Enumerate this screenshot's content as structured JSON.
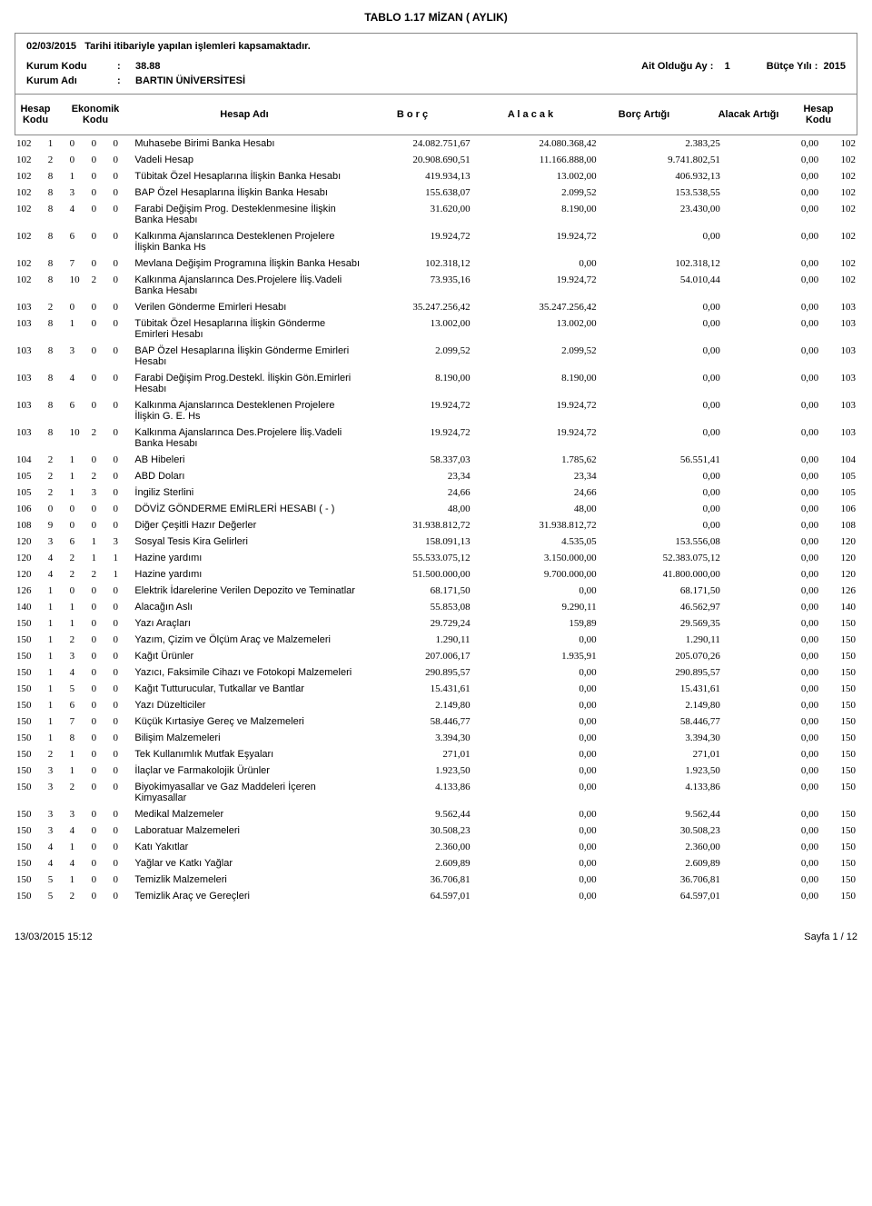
{
  "title": "TABLO 1.17   MİZAN ( AYLIK)",
  "subtitle_date": "02/03/2015",
  "subtitle_text": "Tarihi itibariyle yapılan işlemleri kapsamaktadır.",
  "meta": {
    "kurum_kodu_label": "Kurum Kodu",
    "kurum_kodu_value": "38.88",
    "kurum_adi_label": "Kurum Adı",
    "kurum_adi_value": "BARTIN ÜNİVERSİTESİ",
    "ait_ay_label": "Ait Olduğu Ay  :",
    "ait_ay_value": "1",
    "butce_label": "Bütçe Yılı  :",
    "butce_value": "2015"
  },
  "headers": {
    "hesap_kodu": "Hesap Kodu",
    "ekonomik_kodu": "Ekonomik Kodu",
    "hesap_adi": "Hesap Adı",
    "borc": "B  o  r  ç",
    "alacak": "A  l  a  c  a  k",
    "borc_artigi": "Borç Artığı",
    "alacak_artigi": "Alacak Artığı",
    "hesap_kodu2": "Hesap Kodu"
  },
  "rows": [
    {
      "h": "102",
      "e": [
        "1",
        "0",
        "0",
        "0"
      ],
      "adi": "Muhasebe Birimi Banka Hesabı",
      "b": "24.082.751,67",
      "a": "24.080.368,42",
      "ba": "2.383,25",
      "aa": "0,00",
      "h2": "102"
    },
    {
      "h": "102",
      "e": [
        "2",
        "0",
        "0",
        "0"
      ],
      "adi": "Vadeli Hesap",
      "b": "20.908.690,51",
      "a": "11.166.888,00",
      "ba": "9.741.802,51",
      "aa": "0,00",
      "h2": "102"
    },
    {
      "h": "102",
      "e": [
        "8",
        "1",
        "0",
        "0"
      ],
      "adi": "Tübitak Özel Hesaplarına İlişkin Banka Hesabı",
      "b": "419.934,13",
      "a": "13.002,00",
      "ba": "406.932,13",
      "aa": "0,00",
      "h2": "102"
    },
    {
      "h": "102",
      "e": [
        "8",
        "3",
        "0",
        "0"
      ],
      "adi": "BAP Özel Hesaplarına İlişkin Banka Hesabı",
      "b": "155.638,07",
      "a": "2.099,52",
      "ba": "153.538,55",
      "aa": "0,00",
      "h2": "102"
    },
    {
      "h": "102",
      "e": [
        "8",
        "4",
        "0",
        "0"
      ],
      "adi": "Farabi Değişim Prog. Desteklenmesine İlişkin Banka Hesabı",
      "b": "31.620,00",
      "a": "8.190,00",
      "ba": "23.430,00",
      "aa": "0,00",
      "h2": "102"
    },
    {
      "h": "102",
      "e": [
        "8",
        "6",
        "0",
        "0"
      ],
      "adi": "Kalkınma Ajanslarınca Desteklenen Projelere İlişkin Banka Hs",
      "b": "19.924,72",
      "a": "19.924,72",
      "ba": "0,00",
      "aa": "0,00",
      "h2": "102"
    },
    {
      "h": "102",
      "e": [
        "8",
        "7",
        "0",
        "0"
      ],
      "adi": "Mevlana Değişim Programına İlişkin Banka Hesabı",
      "b": "102.318,12",
      "a": "0,00",
      "ba": "102.318,12",
      "aa": "0,00",
      "h2": "102"
    },
    {
      "h": "102",
      "e": [
        "8",
        "10",
        "2",
        "0"
      ],
      "adi": "Kalkınma Ajanslarınca Des.Projelere İliş.Vadeli Banka Hesabı",
      "b": "73.935,16",
      "a": "19.924,72",
      "ba": "54.010,44",
      "aa": "0,00",
      "h2": "102"
    },
    {
      "h": "103",
      "e": [
        "2",
        "0",
        "0",
        "0"
      ],
      "adi": "Verilen Gönderme Emirleri Hesabı",
      "b": "35.247.256,42",
      "a": "35.247.256,42",
      "ba": "0,00",
      "aa": "0,00",
      "h2": "103"
    },
    {
      "h": "103",
      "e": [
        "8",
        "1",
        "0",
        "0"
      ],
      "adi": "Tübitak Özel Hesaplarına İlişkin Gönderme Emirleri Hesabı",
      "b": "13.002,00",
      "a": "13.002,00",
      "ba": "0,00",
      "aa": "0,00",
      "h2": "103"
    },
    {
      "h": "103",
      "e": [
        "8",
        "3",
        "0",
        "0"
      ],
      "adi": "BAP Özel Hesaplarına İlişkin Gönderme Emirleri Hesabı",
      "b": "2.099,52",
      "a": "2.099,52",
      "ba": "0,00",
      "aa": "0,00",
      "h2": "103"
    },
    {
      "h": "103",
      "e": [
        "8",
        "4",
        "0",
        "0"
      ],
      "adi": "Farabi Değişim Prog.Destekl. İlişkin Gön.Emirleri Hesabı",
      "b": "8.190,00",
      "a": "8.190,00",
      "ba": "0,00",
      "aa": "0,00",
      "h2": "103"
    },
    {
      "h": "103",
      "e": [
        "8",
        "6",
        "0",
        "0"
      ],
      "adi": "Kalkınma Ajanslarınca Desteklenen Projelere İlişkin G. E. Hs",
      "b": "19.924,72",
      "a": "19.924,72",
      "ba": "0,00",
      "aa": "0,00",
      "h2": "103"
    },
    {
      "h": "103",
      "e": [
        "8",
        "10",
        "2",
        "0"
      ],
      "adi": "Kalkınma Ajanslarınca Des.Projelere İliş.Vadeli Banka Hesabı",
      "b": "19.924,72",
      "a": "19.924,72",
      "ba": "0,00",
      "aa": "0,00",
      "h2": "103"
    },
    {
      "h": "104",
      "e": [
        "2",
        "1",
        "0",
        "0"
      ],
      "adi": "AB Hibeleri",
      "b": "58.337,03",
      "a": "1.785,62",
      "ba": "56.551,41",
      "aa": "0,00",
      "h2": "104"
    },
    {
      "h": "105",
      "e": [
        "2",
        "1",
        "2",
        "0"
      ],
      "adi": "ABD Doları",
      "b": "23,34",
      "a": "23,34",
      "ba": "0,00",
      "aa": "0,00",
      "h2": "105"
    },
    {
      "h": "105",
      "e": [
        "2",
        "1",
        "3",
        "0"
      ],
      "adi": "İngiliz Sterlini",
      "b": "24,66",
      "a": "24,66",
      "ba": "0,00",
      "aa": "0,00",
      "h2": "105"
    },
    {
      "h": "106",
      "e": [
        "0",
        "0",
        "0",
        "0"
      ],
      "adi": "DÖVİZ GÖNDERME EMİRLERİ HESABI  ( - )",
      "b": "48,00",
      "a": "48,00",
      "ba": "0,00",
      "aa": "0,00",
      "h2": "106"
    },
    {
      "h": "108",
      "e": [
        "9",
        "0",
        "0",
        "0"
      ],
      "adi": "Diğer Çeşitli Hazır Değerler",
      "b": "31.938.812,72",
      "a": "31.938.812,72",
      "ba": "0,00",
      "aa": "0,00",
      "h2": "108"
    },
    {
      "h": "120",
      "e": [
        "3",
        "6",
        "1",
        "3"
      ],
      "adi": "Sosyal Tesis Kira Gelirleri",
      "b": "158.091,13",
      "a": "4.535,05",
      "ba": "153.556,08",
      "aa": "0,00",
      "h2": "120"
    },
    {
      "h": "120",
      "e": [
        "4",
        "2",
        "1",
        "1"
      ],
      "adi": "Hazine yardımı",
      "b": "55.533.075,12",
      "a": "3.150.000,00",
      "ba": "52.383.075,12",
      "aa": "0,00",
      "h2": "120"
    },
    {
      "h": "120",
      "e": [
        "4",
        "2",
        "2",
        "1"
      ],
      "adi": "Hazine yardımı",
      "b": "51.500.000,00",
      "a": "9.700.000,00",
      "ba": "41.800.000,00",
      "aa": "0,00",
      "h2": "120"
    },
    {
      "h": "126",
      "e": [
        "1",
        "0",
        "0",
        "0"
      ],
      "adi": "Elektrik İdarelerine Verilen Depozito ve Teminatlar",
      "b": "68.171,50",
      "a": "0,00",
      "ba": "68.171,50",
      "aa": "0,00",
      "h2": "126"
    },
    {
      "h": "140",
      "e": [
        "1",
        "1",
        "0",
        "0"
      ],
      "adi": "Alacağın Aslı",
      "b": "55.853,08",
      "a": "9.290,11",
      "ba": "46.562,97",
      "aa": "0,00",
      "h2": "140"
    },
    {
      "h": "150",
      "e": [
        "1",
        "1",
        "0",
        "0"
      ],
      "adi": "Yazı Araçları",
      "b": "29.729,24",
      "a": "159,89",
      "ba": "29.569,35",
      "aa": "0,00",
      "h2": "150"
    },
    {
      "h": "150",
      "e": [
        "1",
        "2",
        "0",
        "0"
      ],
      "adi": "Yazım, Çizim ve Ölçüm Araç ve Malzemeleri",
      "b": "1.290,11",
      "a": "0,00",
      "ba": "1.290,11",
      "aa": "0,00",
      "h2": "150"
    },
    {
      "h": "150",
      "e": [
        "1",
        "3",
        "0",
        "0"
      ],
      "adi": "Kağıt Ürünler",
      "b": "207.006,17",
      "a": "1.935,91",
      "ba": "205.070,26",
      "aa": "0,00",
      "h2": "150"
    },
    {
      "h": "150",
      "e": [
        "1",
        "4",
        "0",
        "0"
      ],
      "adi": "Yazıcı, Faksimile Cihazı ve Fotokopi Malzemeleri",
      "b": "290.895,57",
      "a": "0,00",
      "ba": "290.895,57",
      "aa": "0,00",
      "h2": "150"
    },
    {
      "h": "150",
      "e": [
        "1",
        "5",
        "0",
        "0"
      ],
      "adi": "Kağıt Tutturucular, Tutkallar ve Bantlar",
      "b": "15.431,61",
      "a": "0,00",
      "ba": "15.431,61",
      "aa": "0,00",
      "h2": "150"
    },
    {
      "h": "150",
      "e": [
        "1",
        "6",
        "0",
        "0"
      ],
      "adi": "Yazı Düzelticiler",
      "b": "2.149,80",
      "a": "0,00",
      "ba": "2.149,80",
      "aa": "0,00",
      "h2": "150"
    },
    {
      "h": "150",
      "e": [
        "1",
        "7",
        "0",
        "0"
      ],
      "adi": "Küçük Kırtasiye Gereç ve Malzemeleri",
      "b": "58.446,77",
      "a": "0,00",
      "ba": "58.446,77",
      "aa": "0,00",
      "h2": "150"
    },
    {
      "h": "150",
      "e": [
        "1",
        "8",
        "0",
        "0"
      ],
      "adi": "Bilişim Malzemeleri",
      "b": "3.394,30",
      "a": "0,00",
      "ba": "3.394,30",
      "aa": "0,00",
      "h2": "150"
    },
    {
      "h": "150",
      "e": [
        "2",
        "1",
        "0",
        "0"
      ],
      "adi": "Tek Kullanımlık Mutfak Eşyaları",
      "b": "271,01",
      "a": "0,00",
      "ba": "271,01",
      "aa": "0,00",
      "h2": "150"
    },
    {
      "h": "150",
      "e": [
        "3",
        "1",
        "0",
        "0"
      ],
      "adi": "İlaçlar ve Farmakolojik Ürünler",
      "b": "1.923,50",
      "a": "0,00",
      "ba": "1.923,50",
      "aa": "0,00",
      "h2": "150"
    },
    {
      "h": "150",
      "e": [
        "3",
        "2",
        "0",
        "0"
      ],
      "adi": "Biyokimyasallar ve Gaz Maddeleri İçeren Kimyasallar",
      "b": "4.133,86",
      "a": "0,00",
      "ba": "4.133,86",
      "aa": "0,00",
      "h2": "150"
    },
    {
      "h": "150",
      "e": [
        "3",
        "3",
        "0",
        "0"
      ],
      "adi": "Medikal Malzemeler",
      "b": "9.562,44",
      "a": "0,00",
      "ba": "9.562,44",
      "aa": "0,00",
      "h2": "150"
    },
    {
      "h": "150",
      "e": [
        "3",
        "4",
        "0",
        "0"
      ],
      "adi": "Laboratuar Malzemeleri",
      "b": "30.508,23",
      "a": "0,00",
      "ba": "30.508,23",
      "aa": "0,00",
      "h2": "150"
    },
    {
      "h": "150",
      "e": [
        "4",
        "1",
        "0",
        "0"
      ],
      "adi": "Katı Yakıtlar",
      "b": "2.360,00",
      "a": "0,00",
      "ba": "2.360,00",
      "aa": "0,00",
      "h2": "150"
    },
    {
      "h": "150",
      "e": [
        "4",
        "4",
        "0",
        "0"
      ],
      "adi": "Yağlar ve Katkı Yağlar",
      "b": "2.609,89",
      "a": "0,00",
      "ba": "2.609,89",
      "aa": "0,00",
      "h2": "150"
    },
    {
      "h": "150",
      "e": [
        "5",
        "1",
        "0",
        "0"
      ],
      "adi": "Temizlik Malzemeleri",
      "b": "36.706,81",
      "a": "0,00",
      "ba": "36.706,81",
      "aa": "0,00",
      "h2": "150"
    },
    {
      "h": "150",
      "e": [
        "5",
        "2",
        "0",
        "0"
      ],
      "adi": "Temizlik Araç ve Gereçleri",
      "b": "64.597,01",
      "a": "0,00",
      "ba": "64.597,01",
      "aa": "0,00",
      "h2": "150"
    }
  ],
  "footer": {
    "timestamp": "13/03/2015  15:12",
    "page": "Sayfa 1 / 12"
  }
}
